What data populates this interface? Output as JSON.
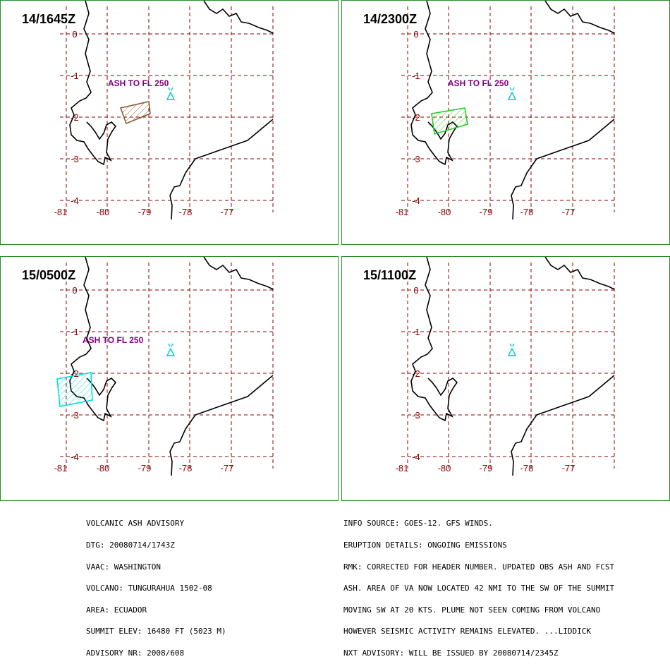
{
  "panels": [
    {
      "time": "14/1645Z",
      "ash_label": "ASH TO FL 250",
      "polygon_color": "#8b5a2b",
      "show_label": true
    },
    {
      "time": "14/2300Z",
      "ash_label": "ASH TO FL 250",
      "polygon_color": "#22cc22",
      "show_label": true
    },
    {
      "time": "15/0500Z",
      "ash_label": "ASH TO FL 250",
      "polygon_color": "#00e0e0",
      "show_label": true
    },
    {
      "time": "15/1100Z",
      "ash_label": "",
      "polygon_color": "",
      "show_label": false
    }
  ],
  "lat_labels": [
    "0",
    "-1",
    "-2",
    "-3",
    "-4"
  ],
  "lon_labels": [
    "-81",
    "-80",
    "-79",
    "-78",
    "-77"
  ],
  "colors": {
    "grid": "#8b0000",
    "coast": "#000000",
    "volcano": "#00cccc",
    "label": "#800080",
    "frame": "#2e8b2e"
  },
  "advisory_left": [
    "VOLCANIC ASH ADVISORY",
    "DTG: 20080714/1743Z",
    "VAAC: WASHINGTON",
    "VOLCANO: TUNGURAHUA 1502-08",
    "AREA: ECUADOR",
    "SUMMIT ELEV: 16480 FT (5023 M)",
    "ADVISORY NR: 2008/608"
  ],
  "advisory_right": [
    "INFO SOURCE: GOES-12. GFS WINDS.",
    "ERUPTION DETAILS: ONGOING EMISSIONS",
    "RMK: CORRECTED FOR HEADER NUMBER. UPDATED OBS ASH AND FCST",
    "ASH. AREA OF VA NOW LOCATED 42 NMI TO THE SW OF THE SUMMIT",
    "MOVING SW AT 20 KTS. PLUME NOT SEEN COMING FROM VOLCANO",
    "HOWEVER SEISMIC ACTIVITY REMAINS ELEVATED. ...LIDDICK",
    "NXT ADVISORY: WILL BE ISSUED BY 20080714/2345Z"
  ]
}
